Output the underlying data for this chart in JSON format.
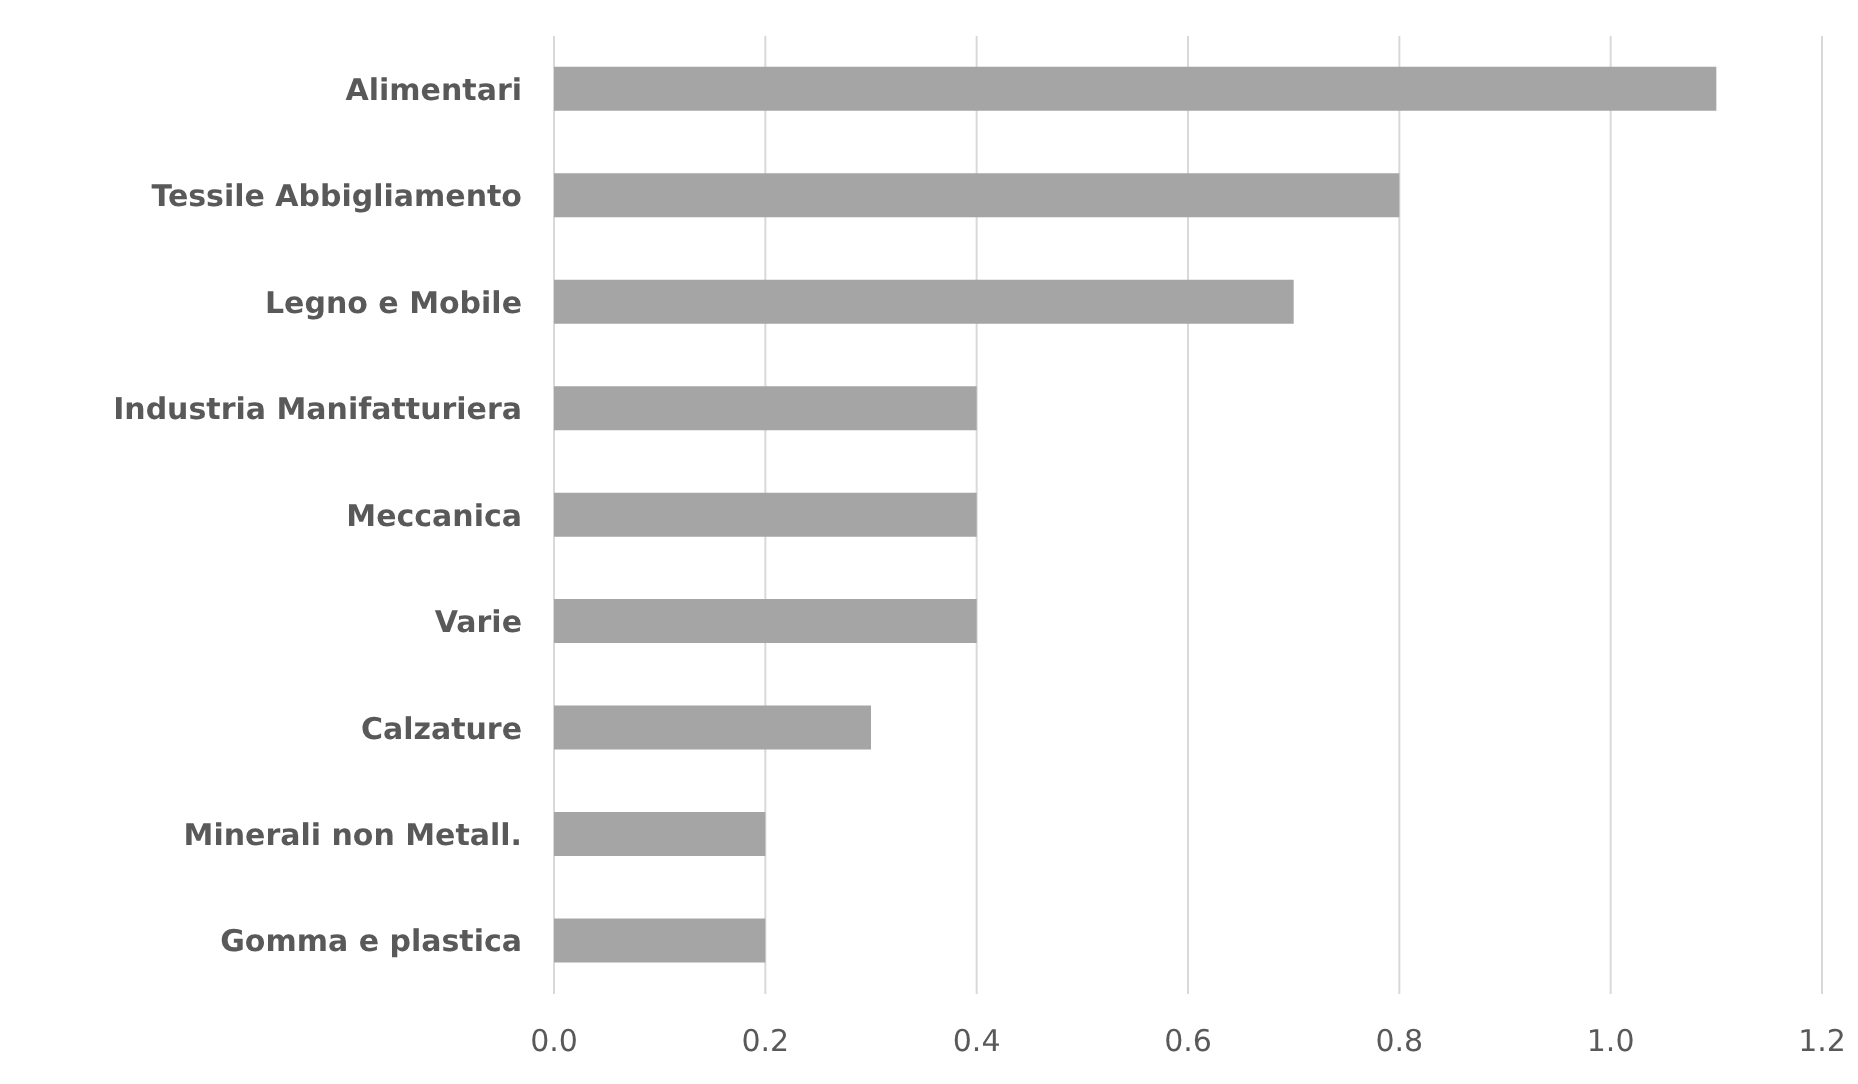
{
  "chart_data": {
    "type": "bar",
    "orientation": "horizontal",
    "categories": [
      "Alimentari",
      "Tessile Abbigliamento",
      "Legno e Mobile",
      "Industria Manifatturiera",
      "Meccanica",
      "Varie",
      "Calzature",
      "Minerali non Metall.",
      "Gomma e plastica"
    ],
    "values": [
      1.1,
      0.8,
      0.7,
      0.4,
      0.4,
      0.4,
      0.3,
      0.2,
      0.2
    ],
    "color": "#a5a5a5",
    "xlim": [
      0,
      1.2
    ],
    "xticks": [
      {
        "value": 0,
        "label": "0.0"
      },
      0.2,
      0.4,
      0.6,
      0.8,
      {
        "value": 1,
        "label": "1.0"
      },
      1.2
    ],
    "grid": "x"
  }
}
